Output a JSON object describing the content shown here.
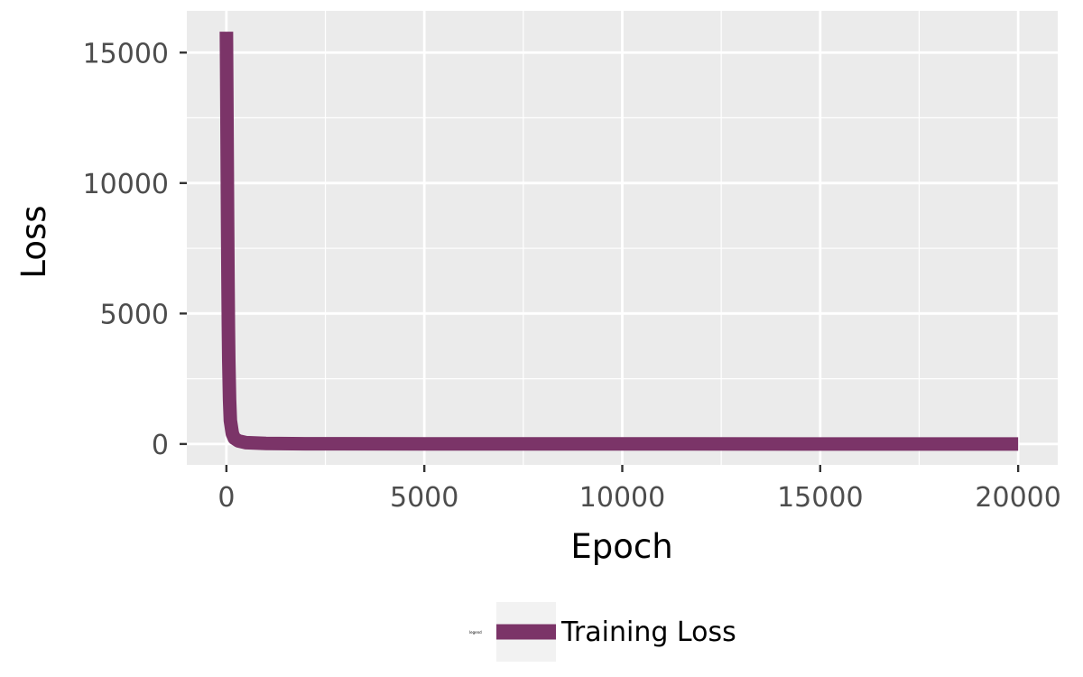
{
  "chart_data": {
    "type": "line",
    "xlabel": "Epoch",
    "ylabel": "Loss",
    "xlim": [
      -1000,
      21000
    ],
    "ylim": [
      -800,
      16600
    ],
    "x_ticks": [
      0,
      5000,
      10000,
      15000,
      20000
    ],
    "x_tick_labels": [
      "0",
      "5000",
      "10000",
      "15000",
      "20000"
    ],
    "y_ticks": [
      0,
      5000,
      10000,
      15000
    ],
    "y_tick_labels": [
      "0",
      "5000",
      "10000",
      "15000"
    ],
    "grid": true,
    "legend": {
      "position": "bottom",
      "title": "legend"
    },
    "series": [
      {
        "name": "Training Loss",
        "color": "#7b3468",
        "x": [
          0,
          10,
          20,
          30,
          40,
          50,
          60,
          80,
          100,
          150,
          200,
          300,
          500,
          1000,
          2000,
          5000,
          10000,
          15000,
          20000
        ],
        "y": [
          15800,
          13500,
          11000,
          8500,
          6300,
          4500,
          3200,
          1700,
          900,
          400,
          220,
          120,
          50,
          20,
          10,
          5,
          3,
          2,
          1
        ]
      }
    ]
  }
}
